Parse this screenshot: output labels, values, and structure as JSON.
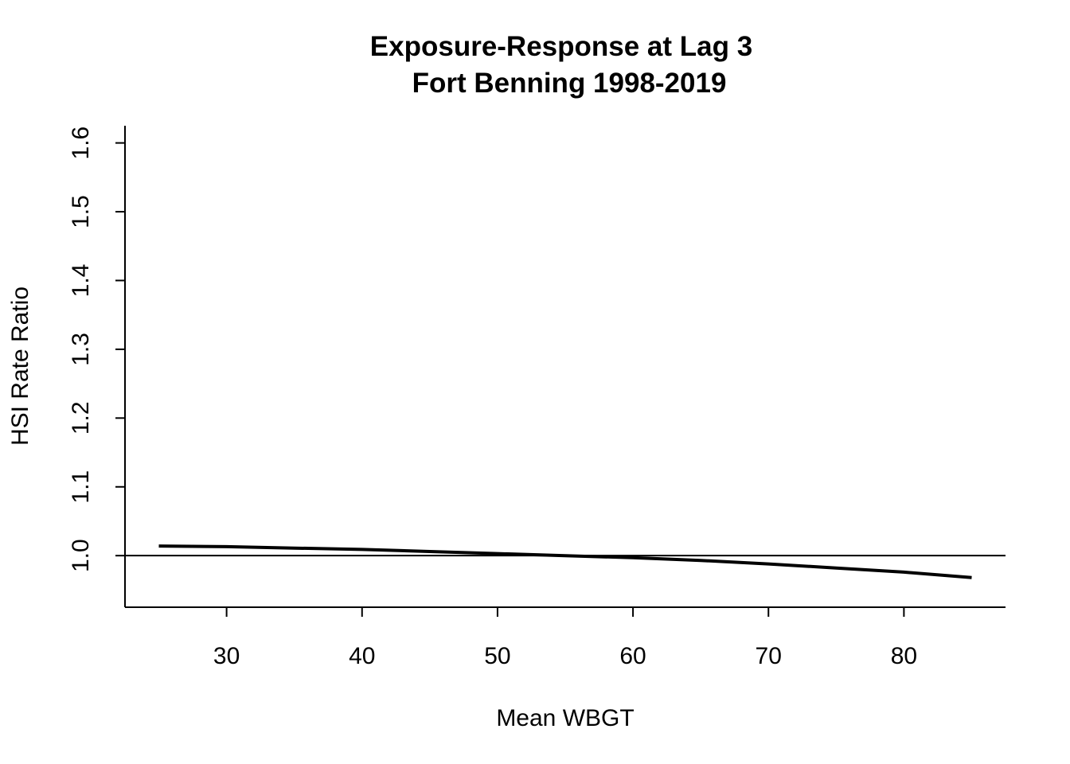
{
  "chart_data": {
    "type": "line",
    "title": "Exposure-Response at Lag 3",
    "subtitle": "Fort Benning 1998-2019",
    "xlabel": "Mean WBGT",
    "ylabel": "HSI Rate Ratio",
    "xlim": [
      22.5,
      87.5
    ],
    "ylim": [
      0.925,
      1.625
    ],
    "x_ticks": [
      30,
      40,
      50,
      60,
      70,
      80
    ],
    "x_tick_labels": [
      "30",
      "40",
      "50",
      "60",
      "70",
      "80"
    ],
    "y_ticks": [
      1.0,
      1.1,
      1.2,
      1.3,
      1.4,
      1.5,
      1.6
    ],
    "y_tick_labels": [
      "1.0",
      "1.1",
      "1.2",
      "1.3",
      "1.4",
      "1.5",
      "1.6"
    ],
    "reference_line": {
      "y": 1.0,
      "color": "#000000"
    },
    "grid": false,
    "legend": "none",
    "series": [
      {
        "color": "#000000",
        "x": [
          25,
          30,
          35,
          40,
          45,
          50,
          55,
          60,
          65,
          70,
          75,
          80,
          85
        ],
        "y": [
          1.014,
          1.013,
          1.011,
          1.009,
          1.006,
          1.003,
          1.0,
          0.997,
          0.993,
          0.988,
          0.982,
          0.976,
          0.968
        ]
      }
    ]
  }
}
